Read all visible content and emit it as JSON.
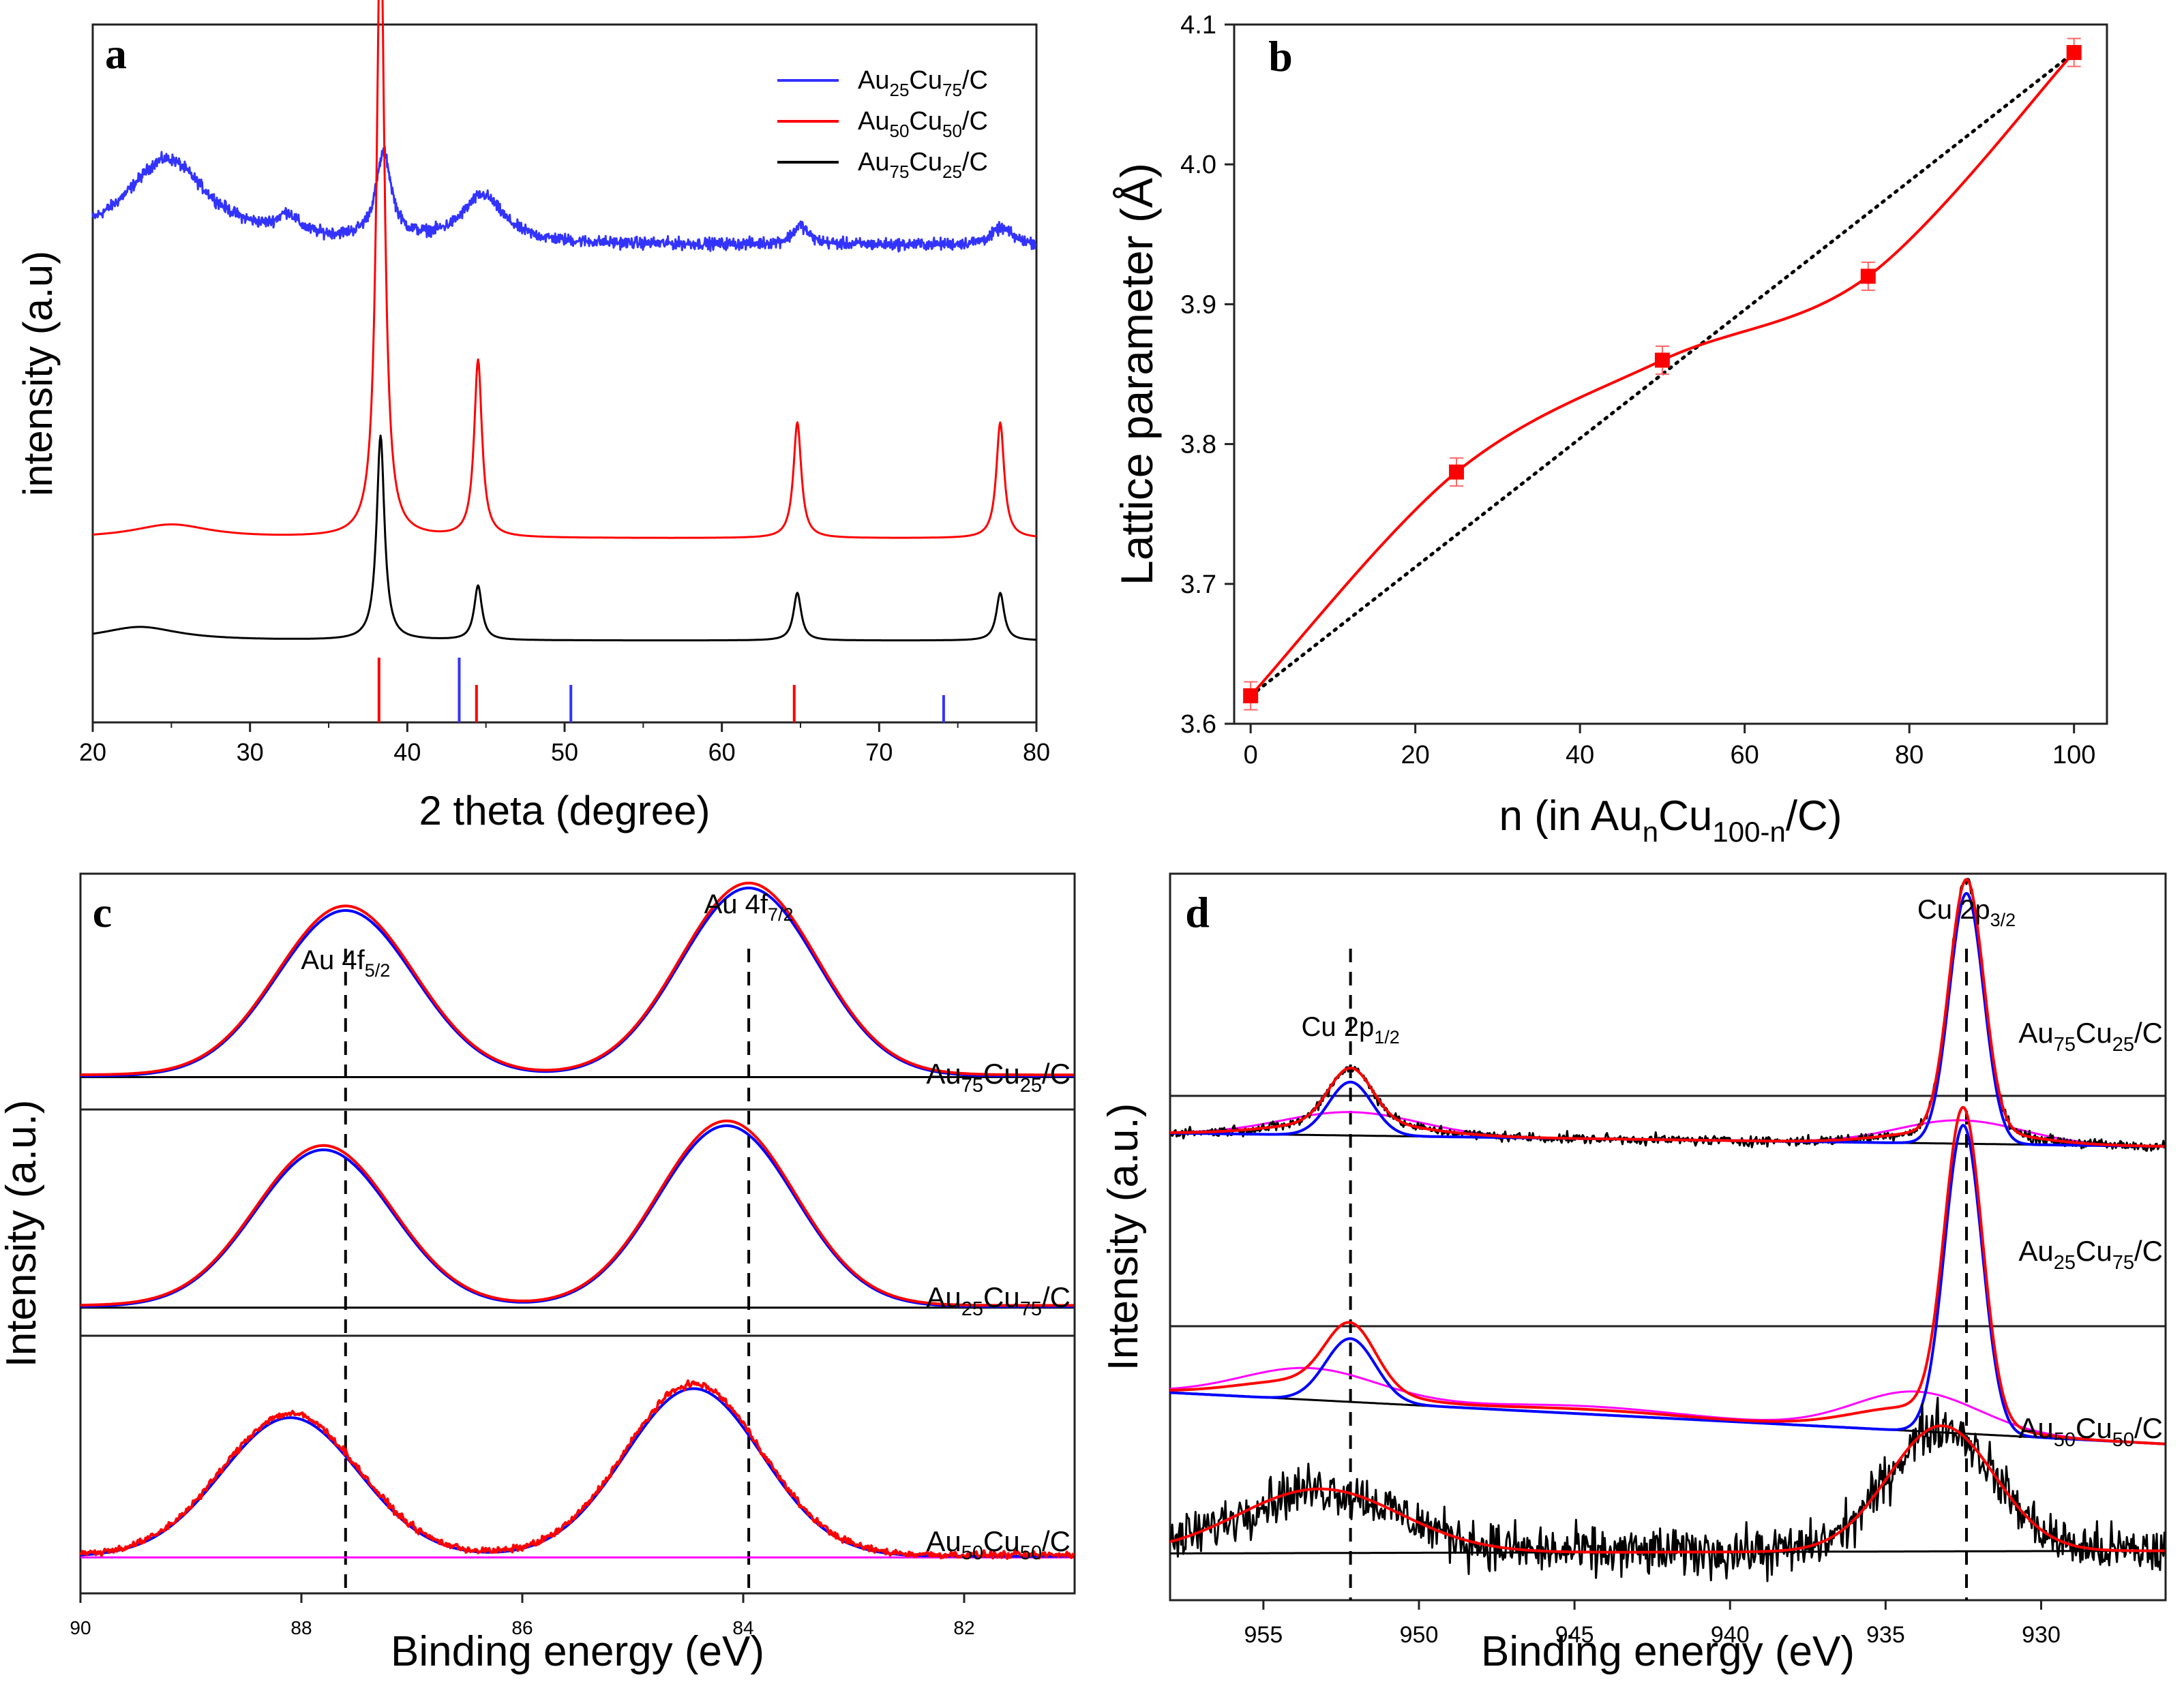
{
  "chart_data": [
    {
      "id": "a",
      "panel_label": "a",
      "type": "line",
      "xlabel": "2 theta (degree)",
      "ylabel": "intensity (a.u)",
      "xlim": [
        20,
        80
      ],
      "xticks": [
        "20",
        "30",
        "40",
        "50",
        "60",
        "70",
        "80"
      ],
      "grid": false,
      "legend": {
        "position": "top-right",
        "entries": [
          {
            "base": "Au",
            "sub1": "25",
            "mid": "Cu",
            "sub2": "75",
            "suffix": "/C",
            "color": "#3333ff"
          },
          {
            "base": "Au",
            "sub1": "50",
            "mid": "Cu",
            "sub2": "50",
            "suffix": "/C",
            "color": "#ff0000"
          },
          {
            "base": "Au",
            "sub1": "75",
            "mid": "Cu",
            "sub2": "25",
            "suffix": "/C",
            "color": "#000000"
          }
        ]
      },
      "series": [
        {
          "name": "Au25Cu75/C",
          "color": "#3333ff",
          "baseline": 0.8,
          "peaks": [
            [
              24.7,
              0.18,
              3.2
            ],
            [
              32.4,
              0.04,
              0.8
            ],
            [
              38.5,
              0.18,
              0.6
            ],
            [
              44.8,
              0.1,
              1.6
            ],
            [
              65.0,
              0.04,
              0.6
            ],
            [
              77.8,
              0.035,
              0.8
            ]
          ]
        },
        {
          "name": "Au50Cu50/C",
          "color": "#ff0000",
          "baseline": 0.0,
          "peaks": [
            [
              25.0,
              0.02,
              3.0
            ],
            [
              38.3,
              0.93,
              0.3
            ],
            [
              44.5,
              0.26,
              0.3
            ],
            [
              64.8,
              0.17,
              0.3
            ],
            [
              77.7,
              0.17,
              0.3
            ]
          ]
        },
        {
          "name": "Au75Cu25/C",
          "color": "#000000",
          "baseline": -0.3,
          "peaks": [
            [
              23.0,
              0.02,
              3.0
            ],
            [
              38.3,
              0.3,
              0.3
            ],
            [
              44.5,
              0.08,
              0.3
            ],
            [
              64.8,
              0.07,
              0.3
            ],
            [
              77.7,
              0.07,
              0.3
            ]
          ]
        }
      ],
      "reference_lines": [
        {
          "x": 38.2,
          "color": "#ff0000",
          "height": 0.19
        },
        {
          "x": 43.3,
          "color": "#3333ff",
          "height": 0.19
        },
        {
          "x": 44.4,
          "color": "#ff0000",
          "height": 0.11
        },
        {
          "x": 50.4,
          "color": "#3333ff",
          "height": 0.11
        },
        {
          "x": 64.6,
          "color": "#ff0000",
          "height": 0.11
        },
        {
          "x": 74.1,
          "color": "#3333ff",
          "height": 0.08
        }
      ]
    },
    {
      "id": "b",
      "panel_label": "b",
      "type": "scatter",
      "xlabel": "n (in Au",
      "xlabel_sub1": "n",
      "xlabel_mid": "Cu",
      "xlabel_sub2": "100-n",
      "xlabel_suffix": "/C)",
      "ylabel": "Lattice parameter (Å)",
      "xlim": [
        -2,
        104
      ],
      "ylim": [
        3.6,
        4.1
      ],
      "xticks": [
        "0",
        "20",
        "40",
        "60",
        "80",
        "100"
      ],
      "yticks": [
        "3.6",
        "3.7",
        "3.8",
        "3.9",
        "4.0",
        "4.1"
      ],
      "grid": false,
      "x": [
        0,
        25,
        50,
        75,
        100
      ],
      "y": [
        3.62,
        3.78,
        3.86,
        3.92,
        4.08
      ],
      "yerr": [
        0.01,
        0.01,
        0.01,
        0.01,
        0.01
      ],
      "color": "#ff0000",
      "vegard_line": {
        "x": [
          0,
          100
        ],
        "y": [
          3.62,
          4.08
        ],
        "style": "dotted",
        "color": "#000000"
      }
    },
    {
      "id": "c",
      "panel_label": "c",
      "type": "line",
      "xlabel": "Binding energy (eV)",
      "ylabel": "Intensity (a.u.)",
      "xlim": [
        90,
        81
      ],
      "xticks": [
        "90",
        "88",
        "86",
        "84",
        "82"
      ],
      "grid": false,
      "peak_labels": [
        {
          "base": "Au 4f",
          "sub": "5/2",
          "x": 87.6
        },
        {
          "base": "Au 4f",
          "sub": "7/2",
          "x": 83.95
        }
      ],
      "dashed_lines_x": [
        87.6,
        83.95
      ],
      "subpanels": [
        {
          "label": {
            "base": "Au",
            "sub1": "75",
            "mid": "Cu",
            "sub2": "25",
            "suffix": "/C"
          },
          "baseline": 0.07,
          "peaks": [
            [
              87.6,
              0.81,
              0.62
            ],
            [
              83.95,
              0.92,
              0.62
            ]
          ],
          "noise": 0.0
        },
        {
          "label": {
            "base": "Au",
            "sub1": "25",
            "mid": "Cu",
            "sub2": "75",
            "suffix": "/C"
          },
          "baseline": 0.06,
          "peaks": [
            [
              87.8,
              0.78,
              0.62
            ],
            [
              84.15,
              0.9,
              0.62
            ]
          ],
          "noise": 0.0
        },
        {
          "label": {
            "base": "Au",
            "sub1": "50",
            "mid": "Cu",
            "sub2": "50",
            "suffix": "/C"
          },
          "baseline": 0.05,
          "peaks": [
            [
              88.1,
              0.62,
              0.62
            ],
            [
              84.45,
              0.75,
              0.62
            ]
          ],
          "noise": 0.015,
          "baseline_color": "#ff00ff"
        }
      ]
    },
    {
      "id": "d",
      "panel_label": "d",
      "type": "line",
      "xlabel": "Binding energy (eV)",
      "ylabel": "Intensity (a.u.)",
      "xlim": [
        958,
        926
      ],
      "xticks": [
        "955",
        "950",
        "945",
        "940",
        "935",
        "930"
      ],
      "grid": false,
      "peak_labels": [
        {
          "base": "Cu 2p",
          "sub": "1/2",
          "x": 952.2
        },
        {
          "base": "Cu 2p",
          "sub": "3/2",
          "x": 932.4
        }
      ],
      "dashed_lines_x": [
        952.2,
        932.4
      ],
      "subpanels": [
        {
          "label": {
            "base": "Au",
            "sub1": "75",
            "mid": "Cu",
            "sub2": "25",
            "suffix": "/C"
          },
          "bg": [
            0.26,
            0.22
          ],
          "noise": 0.015,
          "blue": [
            [
              952.2,
              0.16,
              0.7
            ],
            [
              932.4,
              0.75,
              0.55
            ]
          ],
          "magenta": [
            [
              952.2,
              0.07,
              2.2
            ],
            [
              932.6,
              0.07,
              2.0
            ]
          ]
        },
        {
          "label": {
            "base": "Au",
            "sub1": "25",
            "mid": "Cu",
            "sub2": "75",
            "suffix": "/C"
          },
          "bg": [
            0.27,
            0.14
          ],
          "noise": 0.0,
          "blue": [
            [
              952.2,
              0.16,
              0.8
            ],
            [
              932.5,
              0.78,
              0.6
            ]
          ],
          "magenta": [
            [
              953.5,
              0.08,
              2.2
            ],
            [
              934.0,
              0.1,
              2.0
            ],
            [
              944.5,
              0.02,
              3.0
            ]
          ]
        },
        {
          "label": {
            "base": "Au",
            "sub1": "50",
            "mid": "Cu",
            "sub2": "50",
            "suffix": "/C"
          },
          "bg": [
            0.18,
            0.19
          ],
          "noise": 0.09,
          "red_fit": [
            [
              953.2,
              0.24,
              2.6
            ],
            [
              933.2,
              0.47,
              1.7
            ]
          ]
        }
      ]
    }
  ]
}
